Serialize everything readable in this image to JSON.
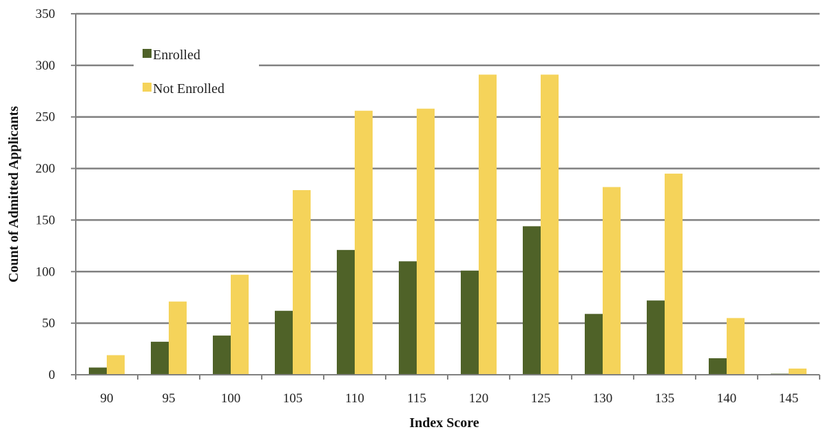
{
  "colors": {
    "enrolled": "#4f6228",
    "not_enrolled": "#f5d35a",
    "gridline": "#808080",
    "axis": "#808080"
  },
  "chart_data": {
    "type": "bar",
    "title": "",
    "xlabel": "Index Score",
    "ylabel": "Count of Admitted Applicants",
    "categories": [
      "90",
      "95",
      "100",
      "105",
      "110",
      "115",
      "120",
      "125",
      "130",
      "135",
      "140",
      "145"
    ],
    "series": [
      {
        "name": "Enrolled",
        "values": [
          7,
          32,
          38,
          62,
          121,
          110,
          101,
          144,
          59,
          72,
          16,
          1
        ]
      },
      {
        "name": "Not Enrolled",
        "values": [
          19,
          71,
          97,
          179,
          256,
          258,
          291,
          291,
          182,
          195,
          55,
          6
        ]
      }
    ],
    "ylim": [
      0,
      350
    ],
    "yticks": [
      0,
      50,
      100,
      150,
      200,
      250,
      300,
      350
    ],
    "grid": true,
    "legend": "top-left"
  }
}
